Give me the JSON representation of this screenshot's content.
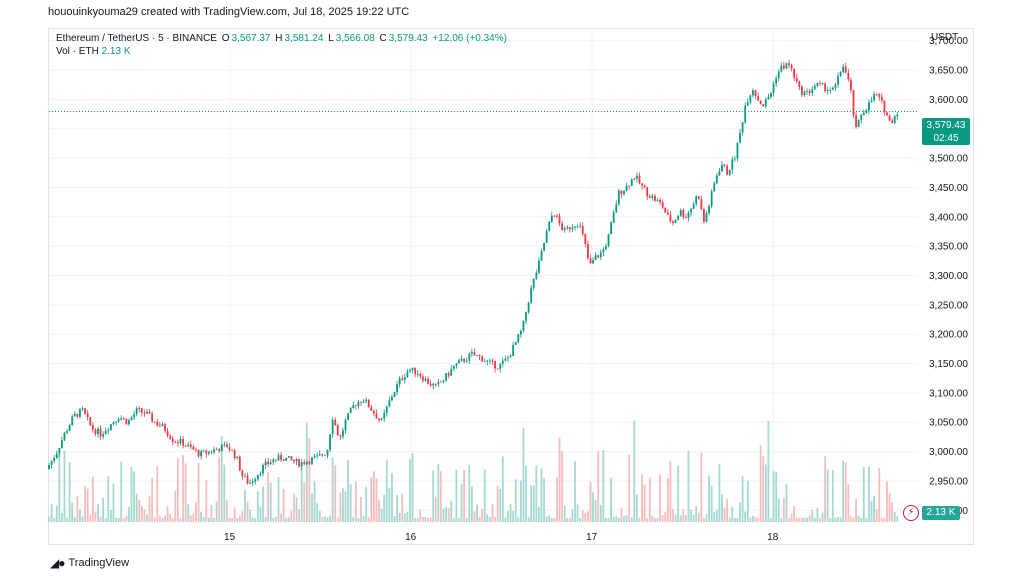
{
  "header": {
    "credit": "hououinkyouma29 created with TradingView.com, Jul 18, 2025 19:22 UTC"
  },
  "legend": {
    "symbol": "Ethereum / TetherUS · 5 · BINANCE",
    "o_label": "O",
    "o_value": "3,567.37",
    "h_label": "H",
    "h_value": "3,581.24",
    "l_label": "L",
    "l_value": "3,566.08",
    "c_label": "C",
    "c_value": "3,579.43",
    "change": "+12.06 (+0.34%)",
    "vol_label": "Vol · ETH",
    "vol_value": "2.13 K"
  },
  "axis": {
    "unit": "USDT"
  },
  "price_tag": {
    "price": "3,579.43",
    "countdown": "02:45"
  },
  "volume_tag": {
    "value": "2.13 K"
  },
  "brand": {
    "name": "TradingView",
    "logo": "tradingview-logo-icon"
  },
  "colors": {
    "up": "#089981",
    "down": "#f23645",
    "vol_up": "#9ad5cd",
    "vol_down": "#f7b5b5",
    "grid": "#f0f3fa"
  },
  "chart_data": {
    "type": "line",
    "title": "Ethereum / TetherUS · 5 · BINANCE",
    "xlabel": "",
    "ylabel": "USDT",
    "x_ticks": [
      "15",
      "16",
      "17",
      "18"
    ],
    "y_ticks": [
      "2,900.00",
      "2,950.00",
      "3,000.00",
      "3,050.00",
      "3,100.00",
      "3,150.00",
      "3,200.00",
      "3,250.00",
      "3,300.00",
      "3,350.00",
      "3,400.00",
      "3,450.00",
      "3,500.00",
      "3,550.00",
      "3,600.00",
      "3,650.00",
      "3,700.00"
    ],
    "ylim": [
      2880,
      3720
    ],
    "x_range_days": [
      14.0,
      18.8
    ],
    "last_price": 3579.43,
    "grid": true,
    "series": [
      {
        "values": [
          [
            14.0,
            2970
          ],
          [
            14.05,
            2995
          ],
          [
            14.1,
            3030
          ],
          [
            14.15,
            3060
          ],
          [
            14.2,
            3070
          ],
          [
            14.25,
            3040
          ],
          [
            14.3,
            3030
          ],
          [
            14.35,
            3045
          ],
          [
            14.4,
            3060
          ],
          [
            14.45,
            3050
          ],
          [
            14.5,
            3070
          ],
          [
            14.55,
            3065
          ],
          [
            14.6,
            3050
          ],
          [
            14.65,
            3040
          ],
          [
            14.7,
            3020
          ],
          [
            14.75,
            3015
          ],
          [
            14.8,
            3005
          ],
          [
            14.85,
            2995
          ],
          [
            14.9,
            3000
          ],
          [
            14.95,
            3005
          ],
          [
            15.0,
            3010
          ],
          [
            15.05,
            2990
          ],
          [
            15.08,
            2960
          ],
          [
            15.12,
            2945
          ],
          [
            15.16,
            2960
          ],
          [
            15.2,
            2975
          ],
          [
            15.25,
            2985
          ],
          [
            15.3,
            2990
          ],
          [
            15.35,
            2985
          ],
          [
            15.4,
            2980
          ],
          [
            15.45,
            2985
          ],
          [
            15.5,
            2990
          ],
          [
            15.55,
            3000
          ],
          [
            15.58,
            3060
          ],
          [
            15.62,
            3020
          ],
          [
            15.65,
            3050
          ],
          [
            15.7,
            3080
          ],
          [
            15.75,
            3090
          ],
          [
            15.8,
            3070
          ],
          [
            15.85,
            3050
          ],
          [
            15.9,
            3090
          ],
          [
            15.95,
            3120
          ],
          [
            16.0,
            3140
          ],
          [
            16.05,
            3135
          ],
          [
            16.1,
            3120
          ],
          [
            16.15,
            3110
          ],
          [
            16.2,
            3125
          ],
          [
            16.25,
            3145
          ],
          [
            16.3,
            3155
          ],
          [
            16.35,
            3165
          ],
          [
            16.4,
            3160
          ],
          [
            16.45,
            3150
          ],
          [
            16.5,
            3145
          ],
          [
            16.55,
            3160
          ],
          [
            16.6,
            3190
          ],
          [
            16.63,
            3210
          ],
          [
            16.65,
            3240
          ],
          [
            16.68,
            3280
          ],
          [
            16.72,
            3320
          ],
          [
            16.76,
            3370
          ],
          [
            16.8,
            3410
          ],
          [
            16.83,
            3390
          ],
          [
            16.86,
            3375
          ],
          [
            16.9,
            3385
          ],
          [
            16.94,
            3390
          ],
          [
            16.97,
            3360
          ],
          [
            17.0,
            3315
          ],
          [
            17.03,
            3330
          ],
          [
            17.07,
            3340
          ],
          [
            17.1,
            3360
          ],
          [
            17.13,
            3400
          ],
          [
            17.16,
            3440
          ],
          [
            17.2,
            3450
          ],
          [
            17.25,
            3470
          ],
          [
            17.28,
            3455
          ],
          [
            17.32,
            3440
          ],
          [
            17.36,
            3430
          ],
          [
            17.4,
            3420
          ],
          [
            17.43,
            3400
          ],
          [
            17.46,
            3390
          ],
          [
            17.5,
            3410
          ],
          [
            17.53,
            3400
          ],
          [
            17.57,
            3420
          ],
          [
            17.6,
            3440
          ],
          [
            17.63,
            3390
          ],
          [
            17.66,
            3420
          ],
          [
            17.7,
            3470
          ],
          [
            17.73,
            3490
          ],
          [
            17.76,
            3475
          ],
          [
            17.8,
            3500
          ],
          [
            17.83,
            3540
          ],
          [
            17.86,
            3590
          ],
          [
            17.9,
            3620
          ],
          [
            17.93,
            3600
          ],
          [
            17.96,
            3590
          ],
          [
            18.0,
            3610
          ],
          [
            18.03,
            3640
          ],
          [
            18.06,
            3655
          ],
          [
            18.1,
            3660
          ],
          [
            18.13,
            3640
          ],
          [
            18.16,
            3615
          ],
          [
            18.2,
            3610
          ],
          [
            18.25,
            3625
          ],
          [
            18.3,
            3620
          ],
          [
            18.35,
            3615
          ],
          [
            18.4,
            3660
          ],
          [
            18.44,
            3620
          ],
          [
            18.47,
            3545
          ],
          [
            18.5,
            3575
          ],
          [
            18.54,
            3590
          ],
          [
            18.58,
            3610
          ],
          [
            18.62,
            3590
          ],
          [
            18.66,
            3560
          ],
          [
            18.7,
            3579.43
          ]
        ]
      }
    ]
  }
}
